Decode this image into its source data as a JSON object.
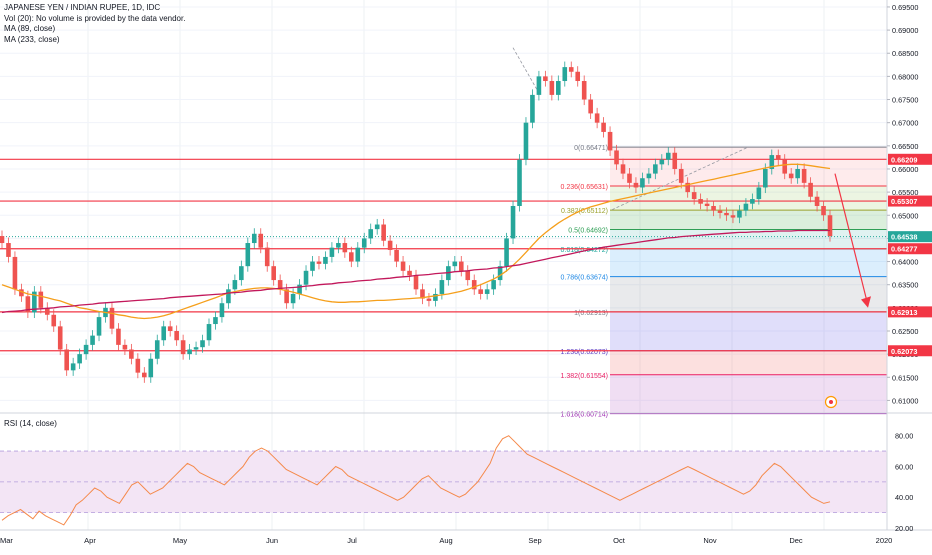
{
  "legend": {
    "title": "JAPANESE YEN / INDIAN RUPEE, 1D, IDC",
    "vol": "Vol (20): No volume is provided by the data vendor.",
    "ma1": "MA (89, close)",
    "ma2": "MA (233, close)"
  },
  "rsi": {
    "title": "RSI (14, close)",
    "ticks": [
      "80.00",
      "60.00",
      "40.00",
      "20.00"
    ]
  },
  "colors": {
    "up": "#26a69a",
    "down": "#ef5350",
    "ma89": "#f59f1b",
    "ma233": "#c2185b",
    "fib_line": "#8bd3a1",
    "rsi_line": "#f5894a",
    "rsi_band": "#f3e5f5"
  },
  "chart_data": {
    "type": "line",
    "x_labels": [
      "Mar",
      "Apr",
      "May",
      "Jun",
      "Jul",
      "Aug",
      "Sep",
      "Oct",
      "Nov",
      "Dec",
      "2020"
    ],
    "y_ticks": [
      "0.69500",
      "0.69000",
      "0.68500",
      "0.68000",
      "0.67500",
      "0.67000",
      "0.66500",
      "0.66000",
      "0.65500",
      "0.65000",
      "0.64500",
      "0.64000",
      "0.63500",
      "0.63000",
      "0.62500",
      "0.62000",
      "0.61500",
      "0.61000"
    ],
    "ylim": [
      0.6075,
      0.6965
    ],
    "last_price": "0.64538",
    "price_levels": [
      "0.66209",
      "0.65307",
      "0.64277",
      "0.62913",
      "0.62073"
    ],
    "fib_levels": [
      {
        "label": "0(0.66471)",
        "value": 0.66471,
        "color": "#787b86"
      },
      {
        "label": "0.236(0.65631)",
        "value": 0.65631,
        "color": "#f23645"
      },
      {
        "label": "0.382(0.65112)",
        "value": 0.65112,
        "color": "#9aa12c"
      },
      {
        "label": "0.5(0.64692)",
        "value": 0.64692,
        "color": "#2e9f55"
      },
      {
        "label": "0.618(0.64272)",
        "value": 0.64272,
        "color": "#1aa59a"
      },
      {
        "label": "0.786(0.63674)",
        "value": 0.63674,
        "color": "#1e88e5"
      },
      {
        "label": "1(0.62913)",
        "value": 0.62913,
        "color": "#787b86"
      },
      {
        "label": "1.236(0.62073)",
        "value": 0.62073,
        "color": "#5b3cc4"
      },
      {
        "label": "1.382(0.61554)",
        "value": 0.61554,
        "color": "#e91e63"
      },
      {
        "label": "1.618(0.60714)",
        "value": 0.60714,
        "color": "#9c27b0"
      }
    ],
    "series": [
      {
        "name": "JAPANESE YEN / INDIAN RUPEE",
        "key": "close",
        "color": "#26a69a"
      },
      {
        "name": "MA (89, close)",
        "key": "ma89",
        "color": "#f59f1b"
      },
      {
        "name": "MA (233, close)",
        "key": "ma233",
        "color": "#c2185b"
      }
    ],
    "points": [
      [
        0.644,
        0.641,
        0.634,
        0.6325,
        0.629,
        0.6335,
        0.63,
        0.6285,
        0.626,
        0.621,
        0.6165,
        0.618,
        0.62,
        0.622,
        0.624,
        0.628,
        0.63,
        0.6255,
        0.622,
        0.621,
        0.619,
        0.616,
        0.615,
        0.619,
        0.623,
        0.626,
        0.625,
        0.623,
        0.62,
        0.621,
        0.6215,
        0.623,
        0.6265,
        0.628,
        0.631,
        0.634,
        0.636,
        0.639,
        0.644,
        0.646,
        0.643,
        0.639,
        0.636,
        0.634,
        0.631,
        0.633,
        0.635,
        0.638,
        0.64,
        0.6395,
        0.641,
        0.643,
        0.644,
        0.642,
        0.64,
        0.643,
        0.645,
        0.647,
        0.648,
        0.6445,
        0.6425,
        0.64,
        0.638,
        0.637,
        0.634,
        0.632,
        0.6315,
        0.633,
        0.636,
        0.639,
        0.64,
        0.638,
        0.636,
        0.634,
        0.633,
        0.634,
        0.636,
        0.639,
        0.645,
        0.652,
        0.662,
        0.67,
        0.676,
        0.68,
        0.679,
        0.676,
        0.679,
        0.682,
        0.681,
        0.679,
        0.675,
        0.672,
        0.67,
        0.668,
        0.664,
        0.661,
        0.659,
        0.657,
        0.656,
        0.658,
        0.659,
        0.661,
        0.662,
        0.6635,
        0.66,
        0.657,
        0.655,
        0.6535,
        0.6525,
        0.652,
        0.651,
        0.6505,
        0.65,
        0.6495,
        0.651,
        0.6525,
        0.6535,
        0.656,
        0.66,
        0.663,
        0.662,
        0.659,
        0.658,
        0.66,
        0.657,
        0.654,
        0.652,
        0.65,
        0.6455
      ],
      [
        0.635,
        0.6345,
        0.634,
        0.6335,
        0.633,
        0.6328,
        0.6325,
        0.6322,
        0.6318,
        0.6315,
        0.631,
        0.6305,
        0.63,
        0.6298,
        0.6295,
        0.6292,
        0.629,
        0.6288,
        0.6285,
        0.6283,
        0.628,
        0.6278,
        0.6277,
        0.6278,
        0.628,
        0.6283,
        0.6287,
        0.6292,
        0.6297,
        0.6302,
        0.6307,
        0.6312,
        0.6317,
        0.6322,
        0.6327,
        0.6332,
        0.6335,
        0.6338,
        0.634,
        0.6342,
        0.6343,
        0.6343,
        0.6342,
        0.634,
        0.6337,
        0.6334,
        0.633,
        0.6326,
        0.6322,
        0.6318,
        0.6315,
        0.6313,
        0.6312,
        0.6312,
        0.6313,
        0.6313,
        0.6314,
        0.6315,
        0.6316,
        0.6316,
        0.6317,
        0.6318,
        0.6319,
        0.632,
        0.6321,
        0.6322,
        0.6324,
        0.6326,
        0.6328,
        0.633,
        0.6333,
        0.6336,
        0.634,
        0.6345,
        0.635,
        0.6356,
        0.6362,
        0.637,
        0.638,
        0.6392,
        0.6405,
        0.642,
        0.6435,
        0.645,
        0.6462,
        0.6473,
        0.6483,
        0.6492,
        0.65,
        0.6507,
        0.6513,
        0.6518,
        0.6522,
        0.6526,
        0.653,
        0.6533,
        0.6536,
        0.6539,
        0.6542,
        0.6545,
        0.6548,
        0.6551,
        0.6554,
        0.6557,
        0.656,
        0.6563,
        0.6566,
        0.6569,
        0.6572,
        0.6575,
        0.6578,
        0.6581,
        0.6584,
        0.6587,
        0.659,
        0.6593,
        0.6596,
        0.6599,
        0.6602,
        0.6605,
        0.6607,
        0.6609,
        0.661,
        0.661,
        0.6609,
        0.6607,
        0.6605,
        0.6603,
        0.6601
      ],
      [
        0.629,
        0.6292,
        0.6293,
        0.6294,
        0.6296,
        0.6297,
        0.6298,
        0.6299,
        0.63,
        0.6302,
        0.6303,
        0.6304,
        0.6306,
        0.6307,
        0.6308,
        0.631,
        0.6311,
        0.6312,
        0.6313,
        0.6314,
        0.6315,
        0.6316,
        0.6317,
        0.6318,
        0.6319,
        0.632,
        0.6322,
        0.6323,
        0.6324,
        0.6325,
        0.6326,
        0.6327,
        0.6328,
        0.6329,
        0.633,
        0.6332,
        0.6333,
        0.6334,
        0.6336,
        0.6337,
        0.6338,
        0.634,
        0.6341,
        0.6342,
        0.6343,
        0.6344,
        0.6345,
        0.6347,
        0.6348,
        0.635,
        0.6351,
        0.6352,
        0.6354,
        0.6355,
        0.6356,
        0.6358,
        0.6359,
        0.636,
        0.6362,
        0.6363,
        0.6364,
        0.6366,
        0.6367,
        0.6368,
        0.637,
        0.6371,
        0.6372,
        0.6374,
        0.6375,
        0.6376,
        0.6378,
        0.6379,
        0.638,
        0.6382,
        0.6383,
        0.6384,
        0.6386,
        0.6387,
        0.6389,
        0.6391,
        0.6393,
        0.6396,
        0.6399,
        0.6402,
        0.6405,
        0.6408,
        0.6411,
        0.6414,
        0.6417,
        0.642,
        0.6423,
        0.6426,
        0.6428,
        0.6431,
        0.6433,
        0.6435,
        0.6437,
        0.6439,
        0.6441,
        0.6443,
        0.6445,
        0.6447,
        0.6449,
        0.6451,
        0.6452,
        0.6454,
        0.6455,
        0.6456,
        0.6457,
        0.6458,
        0.6459,
        0.646,
        0.6461,
        0.6462,
        0.6463,
        0.6463,
        0.6464,
        0.6464,
        0.6465,
        0.6465,
        0.6466,
        0.6466,
        0.6466,
        0.6467,
        0.6467,
        0.6467,
        0.6467,
        0.6467,
        0.6467
      ]
    ],
    "rsi_values": [
      25,
      28,
      30,
      32,
      29,
      26,
      31,
      28,
      26,
      24,
      22,
      28,
      35,
      38,
      42,
      46,
      44,
      40,
      38,
      36,
      42,
      48,
      50,
      46,
      42,
      44,
      46,
      50,
      54,
      58,
      62,
      60,
      56,
      54,
      52,
      50,
      48,
      52,
      56,
      60,
      66,
      70,
      72,
      70,
      66,
      62,
      58,
      56,
      54,
      52,
      50,
      48,
      52,
      56,
      60,
      58,
      54,
      52,
      50,
      48,
      46,
      44,
      42,
      40,
      38,
      40,
      44,
      48,
      52,
      54,
      50,
      46,
      44,
      42,
      40,
      42,
      46,
      50,
      56,
      62,
      72,
      78,
      80,
      76,
      72,
      68,
      66,
      64,
      62,
      60,
      58,
      56,
      54,
      52,
      50,
      48,
      46,
      44,
      42,
      40,
      38,
      40,
      42,
      44,
      46,
      48,
      50,
      52,
      54,
      56,
      58,
      60,
      58,
      56,
      54,
      52,
      50,
      48,
      46,
      44,
      42,
      44,
      48,
      54,
      58,
      62,
      60,
      56,
      52,
      48,
      44,
      40,
      38,
      36,
      37
    ]
  }
}
